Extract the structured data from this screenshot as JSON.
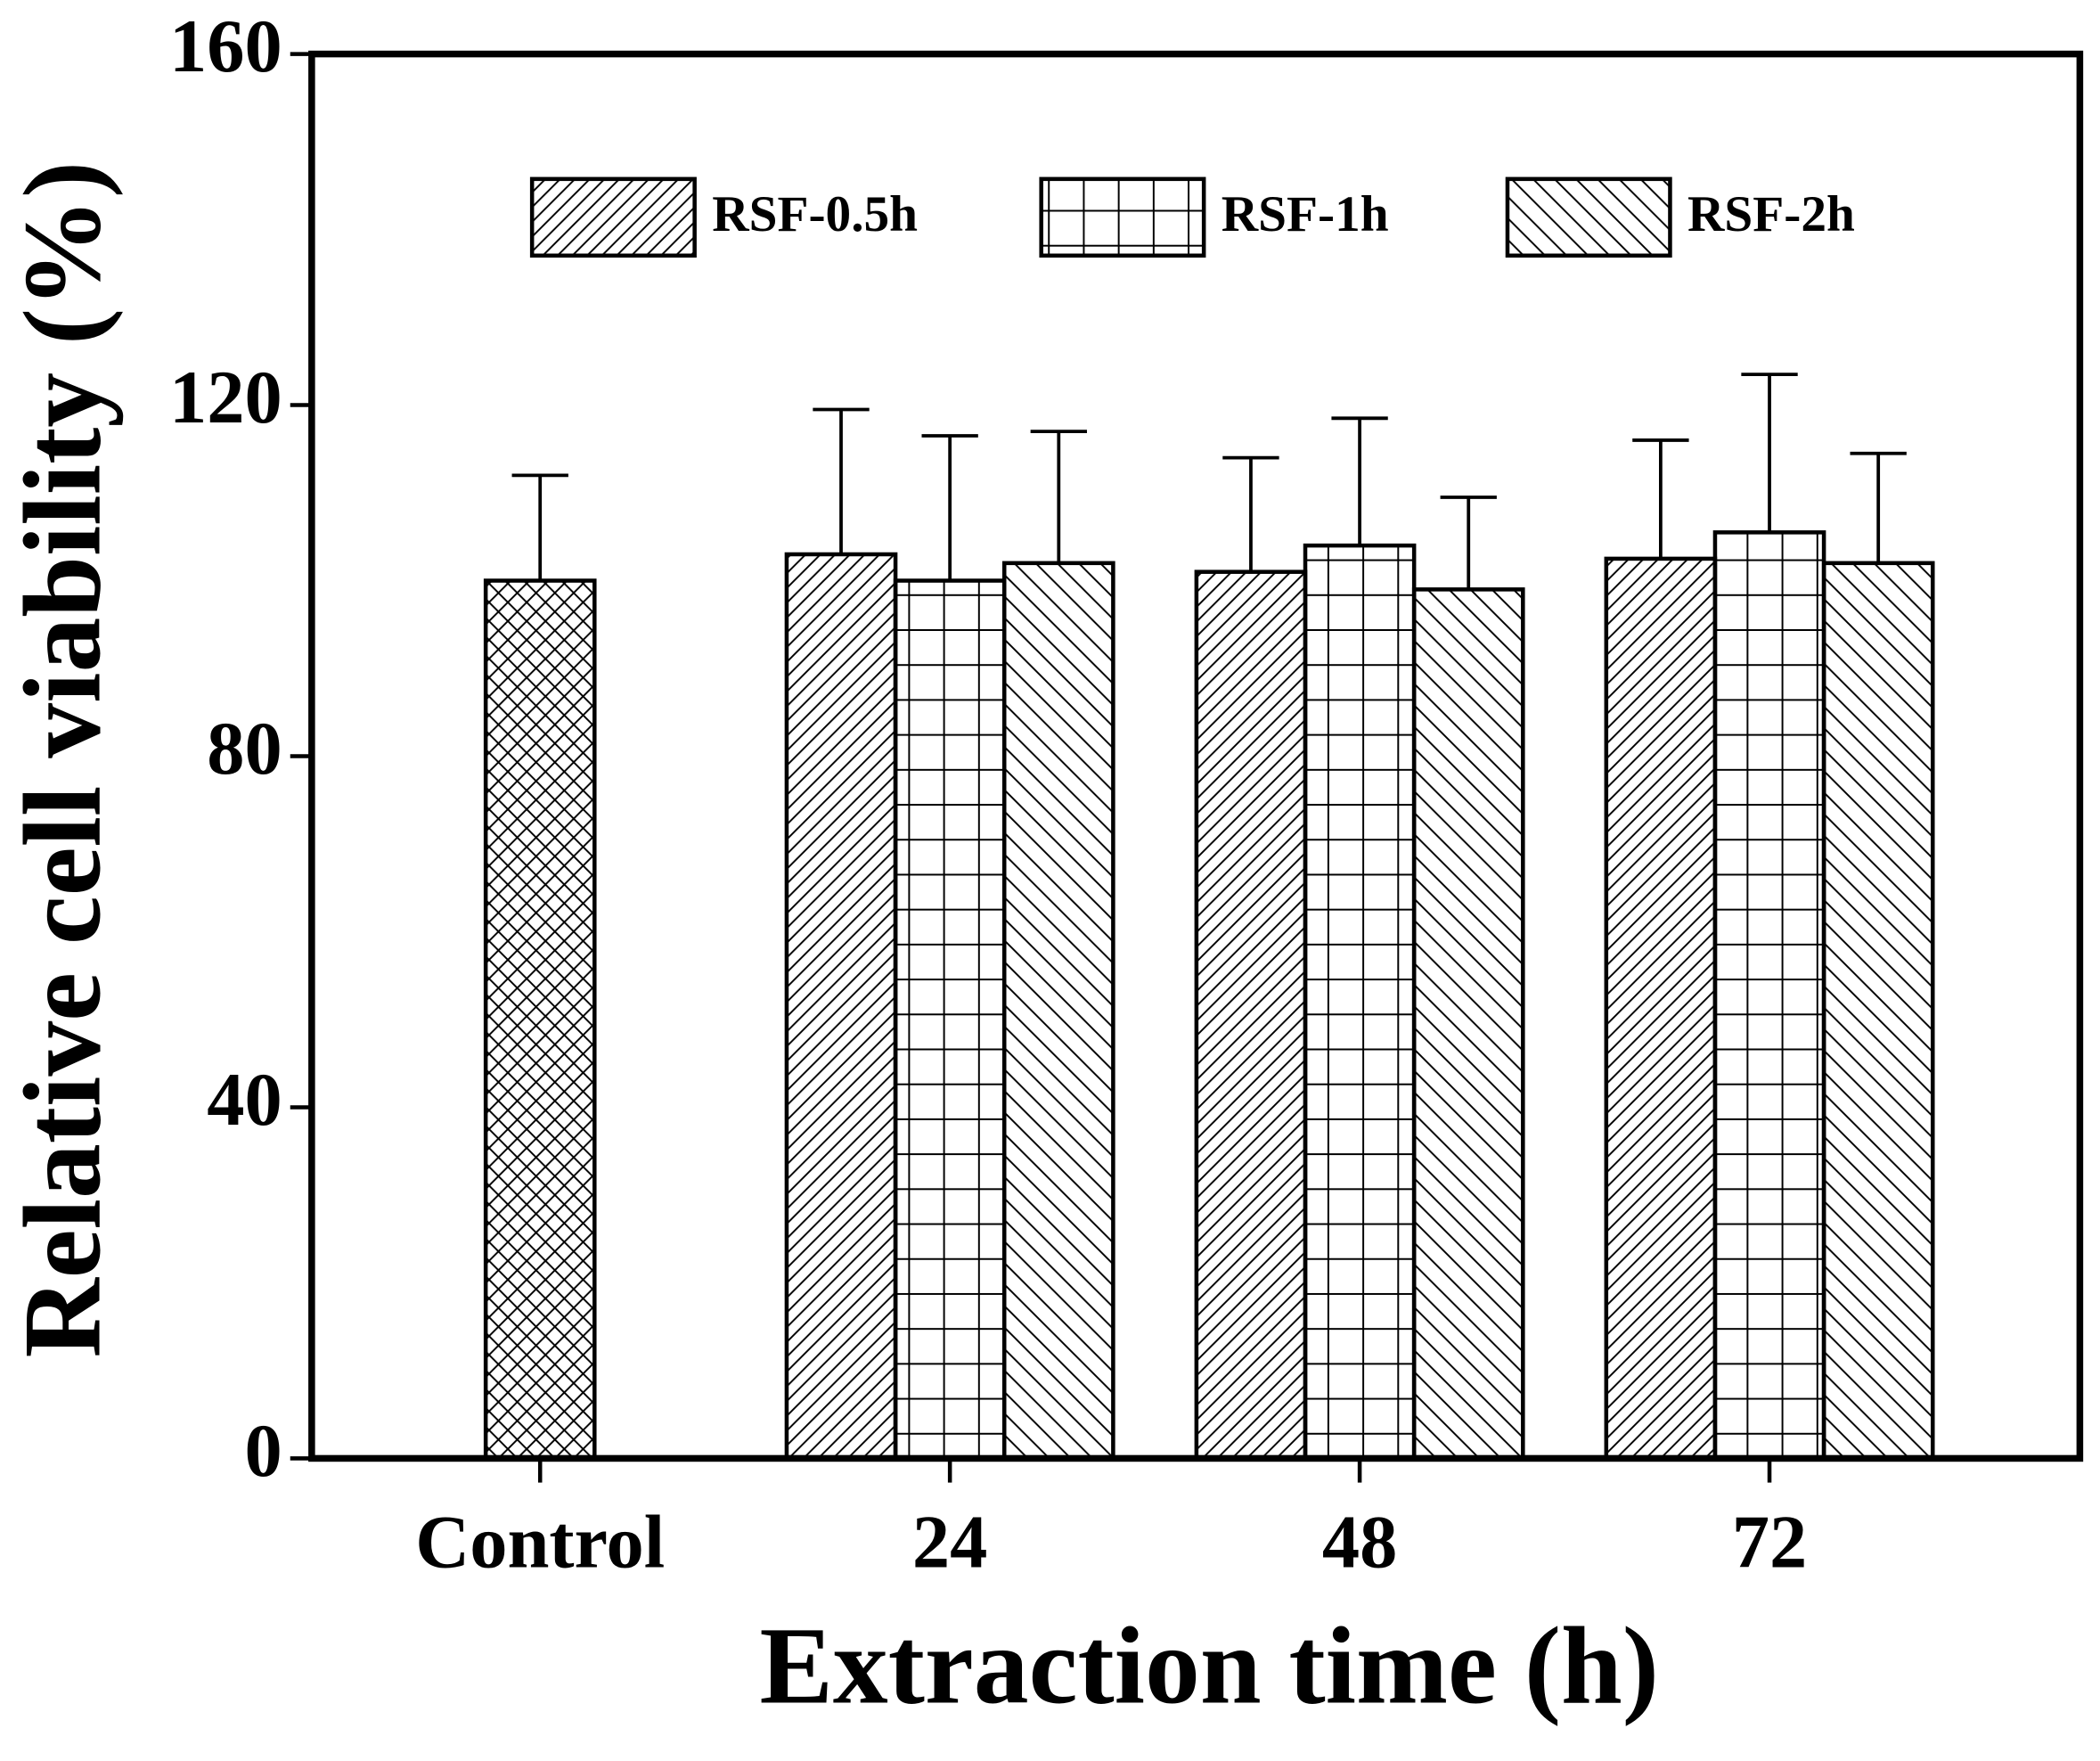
{
  "chart_data": {
    "type": "bar",
    "x_label": "Extraction time (h)",
    "y_label": "Relative cell viability (%)",
    "categories": [
      "Control",
      "24",
      "48",
      "72"
    ],
    "series": [
      {
        "hatch": "crosshatch",
        "values": [
          100,
          null,
          null,
          null
        ],
        "errors": [
          12,
          null,
          null,
          null
        ]
      },
      {
        "name": "RSF-0.5h",
        "hatch": "forward",
        "values": [
          null,
          103,
          101,
          102.5
        ],
        "errors": [
          null,
          16.5,
          13,
          13.5
        ]
      },
      {
        "name": "RSF-1h",
        "hatch": "grid",
        "values": [
          null,
          100,
          104,
          105.5
        ],
        "errors": [
          null,
          16.5,
          14.5,
          18
        ]
      },
      {
        "name": "RSF-2h",
        "hatch": "backward",
        "values": [
          null,
          102,
          99,
          102
        ],
        "errors": [
          null,
          15,
          10.5,
          12.5
        ]
      }
    ],
    "color": "#000000",
    "ylim": [
      0,
      160
    ],
    "yticks": [
      0,
      40,
      80,
      120,
      160
    ],
    "legend": "top"
  }
}
